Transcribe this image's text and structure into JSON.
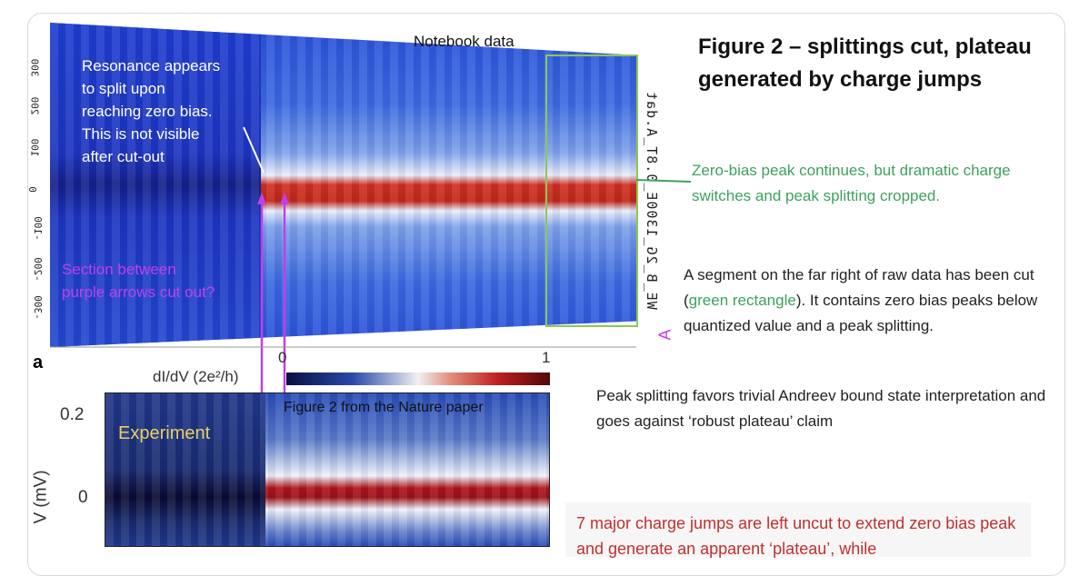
{
  "top_plot": {
    "label": "Notebook data",
    "y_ticks": [
      "300",
      "200",
      "100",
      "0",
      "-100",
      "-200",
      "-300"
    ],
    "filename": "WE_B_2G_1300E_0.8T_A.dat",
    "annotation_white": [
      "Resonance appears",
      "to split upon",
      "reaching zero bias.",
      "This is not visible",
      "after cut-out"
    ],
    "annotation_purple": [
      "Section between",
      "purple arrows cut out?"
    ],
    "marker": "A"
  },
  "bottom_plot": {
    "panel_label": "a",
    "colorbar_label": "dI/dV (2e²/h)",
    "colorbar_ticks": [
      "0",
      "1"
    ],
    "caption": "Figure 2 from the Nature paper",
    "experiment_label": "Experiment",
    "y_ticks": [
      "0.2",
      "0"
    ],
    "y_label": "V (mV)"
  },
  "slide": {
    "title": "Figure 2 – splittings cut, plateau generated by charge jumps",
    "green_note": "Zero-bias peak continues, but dramatic charge switches and peak splitting cropped.",
    "segment_note_a": "A segment on the far right of raw data has been cut (",
    "segment_note_green": "green rectangle",
    "segment_note_b": "). It contains zero bias peaks below quantized value and a peak splitting.",
    "splitting_note": "Peak splitting favors trivial Andreev bound state interpretation and goes against ‘robust plateau’ claim",
    "red_note": "7 major charge jumps are left uncut to extend zero bias peak and generate an apparent ‘plateau’, while"
  },
  "colors": {
    "green": "#3fa060",
    "purple": "#c040e8",
    "red": "#c03030"
  }
}
